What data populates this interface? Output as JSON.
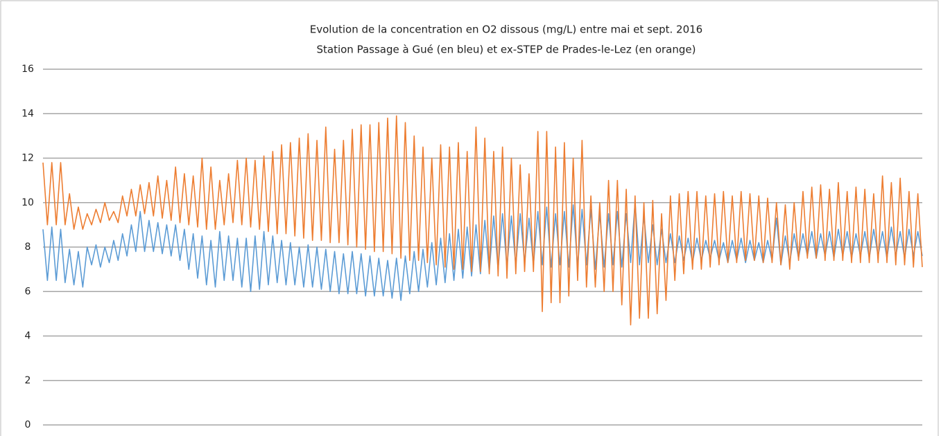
{
  "chart_data": {
    "type": "line",
    "title": "Evolution de la concentration en O2 dissous (mg/L) entre mai et sept. 2016",
    "subtitle": "Station Passage à Gué (en bleu) et ex-STEP de Prades-le-Lez (en orange)",
    "ylim": [
      0,
      16
    ],
    "yticks": [
      0,
      2,
      4,
      6,
      8,
      10,
      12,
      14,
      16
    ],
    "grid": true,
    "series": [
      {
        "color": "#5b9bd5",
        "values": [
          8.8,
          6.5,
          8.9,
          6.5,
          8.8,
          6.4,
          7.9,
          6.3,
          7.8,
          6.2,
          8.0,
          7.2,
          8.1,
          7.1,
          8.0,
          7.3,
          8.3,
          7.4,
          8.6,
          7.6,
          9.0,
          7.8,
          9.6,
          7.8,
          9.2,
          7.8,
          9.1,
          7.7,
          9.0,
          7.6,
          9.0,
          7.4,
          8.8,
          7.0,
          8.6,
          6.6,
          8.5,
          6.3,
          8.3,
          6.2,
          8.7,
          6.5,
          8.5,
          6.5,
          8.4,
          6.2,
          8.4,
          6.0,
          8.5,
          6.1,
          8.7,
          6.3,
          8.5,
          6.4,
          8.3,
          6.3,
          8.2,
          6.3,
          8.0,
          6.2,
          8.1,
          6.2,
          8.0,
          6.1,
          7.9,
          6.0,
          7.8,
          5.9,
          7.7,
          5.9,
          7.8,
          5.9,
          7.7,
          5.8,
          7.6,
          5.8,
          7.5,
          5.8,
          7.4,
          5.7,
          7.5,
          5.6,
          7.6,
          5.9,
          7.8,
          6.0,
          7.9,
          6.2,
          8.2,
          6.3,
          8.4,
          6.4,
          8.6,
          6.5,
          8.8,
          6.6,
          8.9,
          6.7,
          9.0,
          6.8,
          9.2,
          6.9,
          9.4,
          7.0,
          9.5,
          7.1,
          9.4,
          7.2,
          9.5,
          7.3,
          9.3,
          7.2,
          9.6,
          7.2,
          9.8,
          7.1,
          9.5,
          7.2,
          9.6,
          7.1,
          9.9,
          7.1,
          9.7,
          7.2,
          9.7,
          7.0,
          9.5,
          7.1,
          9.5,
          7.2,
          9.6,
          7.1,
          9.5,
          7.3,
          10.0,
          7.2,
          9.4,
          7.3,
          9.0,
          7.2,
          8.8,
          7.3,
          8.6,
          7.3,
          8.5,
          7.4,
          8.4,
          7.3,
          8.4,
          7.4,
          8.3,
          7.5,
          8.3,
          7.4,
          8.2,
          7.3,
          8.3,
          7.4,
          8.4,
          7.3,
          8.3,
          7.4,
          8.2,
          7.3,
          8.3,
          7.4,
          9.3,
          7.2,
          8.5,
          7.3,
          8.6,
          7.5,
          8.6,
          7.6,
          8.7,
          7.5,
          8.6,
          7.6,
          8.7,
          7.5,
          8.8,
          7.6,
          8.7,
          7.5,
          8.6,
          7.6,
          8.7,
          7.5,
          8.8,
          7.6,
          8.7,
          7.5,
          8.9,
          7.6,
          8.7,
          7.5,
          8.8,
          7.6,
          8.7,
          7.6
        ]
      },
      {
        "color": "#ed7d31",
        "values": [
          11.8,
          9.0,
          11.8,
          9.0,
          11.8,
          9.0,
          10.4,
          8.8,
          9.8,
          8.8,
          9.5,
          9.0,
          9.7,
          9.1,
          10.0,
          9.2,
          9.6,
          9.1,
          10.3,
          9.4,
          10.6,
          9.4,
          10.8,
          9.5,
          10.9,
          9.4,
          11.2,
          9.3,
          11.0,
          9.2,
          11.6,
          9.1,
          11.3,
          9.0,
          11.2,
          8.9,
          12.0,
          8.8,
          11.6,
          8.8,
          11.0,
          9.0,
          11.3,
          9.1,
          11.9,
          9.0,
          12.0,
          8.9,
          11.9,
          8.8,
          12.1,
          8.7,
          12.3,
          8.6,
          12.6,
          8.6,
          12.7,
          8.5,
          12.9,
          8.4,
          13.1,
          8.3,
          12.8,
          8.3,
          13.4,
          8.2,
          12.4,
          8.2,
          12.8,
          8.1,
          13.3,
          8.0,
          13.5,
          7.9,
          13.5,
          7.8,
          13.6,
          7.8,
          13.8,
          7.7,
          13.9,
          7.5,
          13.6,
          7.4,
          13.0,
          7.4,
          12.5,
          7.3,
          12.0,
          7.2,
          12.6,
          7.1,
          12.5,
          7.0,
          12.7,
          7.0,
          12.3,
          6.9,
          13.4,
          6.9,
          12.9,
          6.8,
          12.3,
          6.7,
          12.5,
          6.6,
          12.0,
          6.8,
          11.7,
          6.9,
          11.3,
          6.9,
          13.2,
          5.1,
          13.2,
          5.5,
          12.5,
          5.5,
          12.7,
          5.8,
          12.0,
          6.5,
          12.8,
          6.2,
          10.3,
          6.2,
          10.0,
          6.0,
          11.0,
          6.0,
          11.0,
          5.4,
          10.6,
          4.5,
          10.3,
          4.8,
          10.0,
          4.8,
          10.1,
          5.0,
          9.5,
          5.6,
          10.3,
          6.5,
          10.4,
          6.8,
          10.5,
          7.0,
          10.5,
          7.0,
          10.3,
          7.1,
          10.4,
          7.2,
          10.5,
          7.3,
          10.3,
          7.3,
          10.5,
          7.4,
          10.4,
          7.4,
          10.3,
          7.3,
          10.2,
          7.3,
          10.0,
          7.2,
          9.9,
          7.0,
          10.0,
          7.4,
          10.5,
          7.5,
          10.7,
          7.5,
          10.8,
          7.4,
          10.6,
          7.4,
          10.9,
          7.4,
          10.5,
          7.3,
          10.7,
          7.3,
          10.6,
          7.3,
          10.4,
          7.3,
          11.2,
          7.3,
          10.9,
          7.2,
          11.1,
          7.2,
          10.5,
          7.1,
          10.4,
          7.1
        ]
      }
    ]
  }
}
